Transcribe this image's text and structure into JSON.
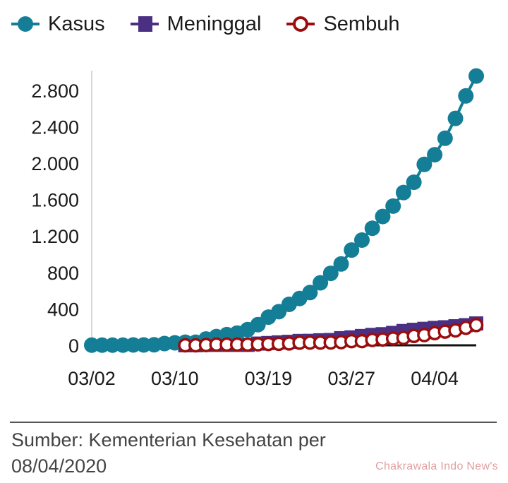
{
  "legend": [
    {
      "label": "Kasus",
      "color": "#137e96",
      "marker": "circle-filled-icon"
    },
    {
      "label": "Meninggal",
      "color": "#4a2f82",
      "marker": "square-filled-icon"
    },
    {
      "label": "Sembuh",
      "color": "#9b0d0d",
      "marker": "circle-open-icon"
    }
  ],
  "footer": {
    "source": "Sumber: Kementerian Kesehatan per 08/04/2020",
    "watermark": "Chakrawala Indo New's"
  },
  "chart_data": {
    "type": "line",
    "title": "",
    "xlabel": "",
    "ylabel": "",
    "x": [
      "03/02",
      "03/03",
      "03/04",
      "03/05",
      "03/06",
      "03/07",
      "03/08",
      "03/09",
      "03/10",
      "03/11",
      "03/12",
      "03/13",
      "03/14",
      "03/15",
      "03/16",
      "03/17",
      "03/18",
      "03/19",
      "03/20",
      "03/21",
      "03/22",
      "03/23",
      "03/24",
      "03/25",
      "03/26",
      "03/27",
      "03/28",
      "03/29",
      "03/30",
      "03/31",
      "04/01",
      "04/02",
      "04/03",
      "04/04",
      "04/05",
      "04/06",
      "04/07",
      "04/08"
    ],
    "x_tick_labels": [
      "03/02",
      "03/10",
      "03/19",
      "03/27",
      "04/04"
    ],
    "y_tick_labels": [
      "0",
      "400",
      "800",
      "1.200",
      "1.600",
      "2.000",
      "2.400",
      "2.800"
    ],
    "y_ticks": [
      0,
      400,
      800,
      1200,
      1600,
      2000,
      2400,
      2800
    ],
    "ylim": [
      0,
      3000
    ],
    "grid": false,
    "legend_position": "top",
    "series": [
      {
        "name": "Kasus",
        "color": "#137e96",
        "marker": "circle",
        "values": [
          2,
          2,
          2,
          2,
          4,
          4,
          6,
          19,
          27,
          34,
          34,
          69,
          96,
          117,
          134,
          172,
          227,
          309,
          369,
          450,
          514,
          579,
          686,
          790,
          893,
          1046,
          1155,
          1285,
          1414,
          1528,
          1677,
          1790,
          1986,
          2092,
          2273,
          2491,
          2738,
          2956
        ]
      },
      {
        "name": "Meninggal",
        "color": "#4a2f82",
        "marker": "square",
        "values": [
          0,
          0,
          0,
          0,
          0,
          0,
          0,
          0,
          0,
          1,
          1,
          4,
          5,
          5,
          5,
          5,
          19,
          25,
          32,
          38,
          48,
          49,
          55,
          58,
          78,
          87,
          102,
          114,
          122,
          136,
          157,
          170,
          181,
          191,
          198,
          209,
          221,
          240
        ]
      },
      {
        "name": "Sembuh",
        "color": "#9b0d0d",
        "marker": "circle-open",
        "values": [
          0,
          0,
          0,
          0,
          0,
          0,
          0,
          0,
          0,
          0,
          0,
          3,
          8,
          8,
          8,
          8,
          11,
          15,
          16,
          20,
          29,
          30,
          30,
          31,
          35,
          46,
          46,
          59,
          64,
          75,
          81,
          103,
          112,
          134,
          150,
          164,
          192,
          222
        ]
      }
    ]
  }
}
